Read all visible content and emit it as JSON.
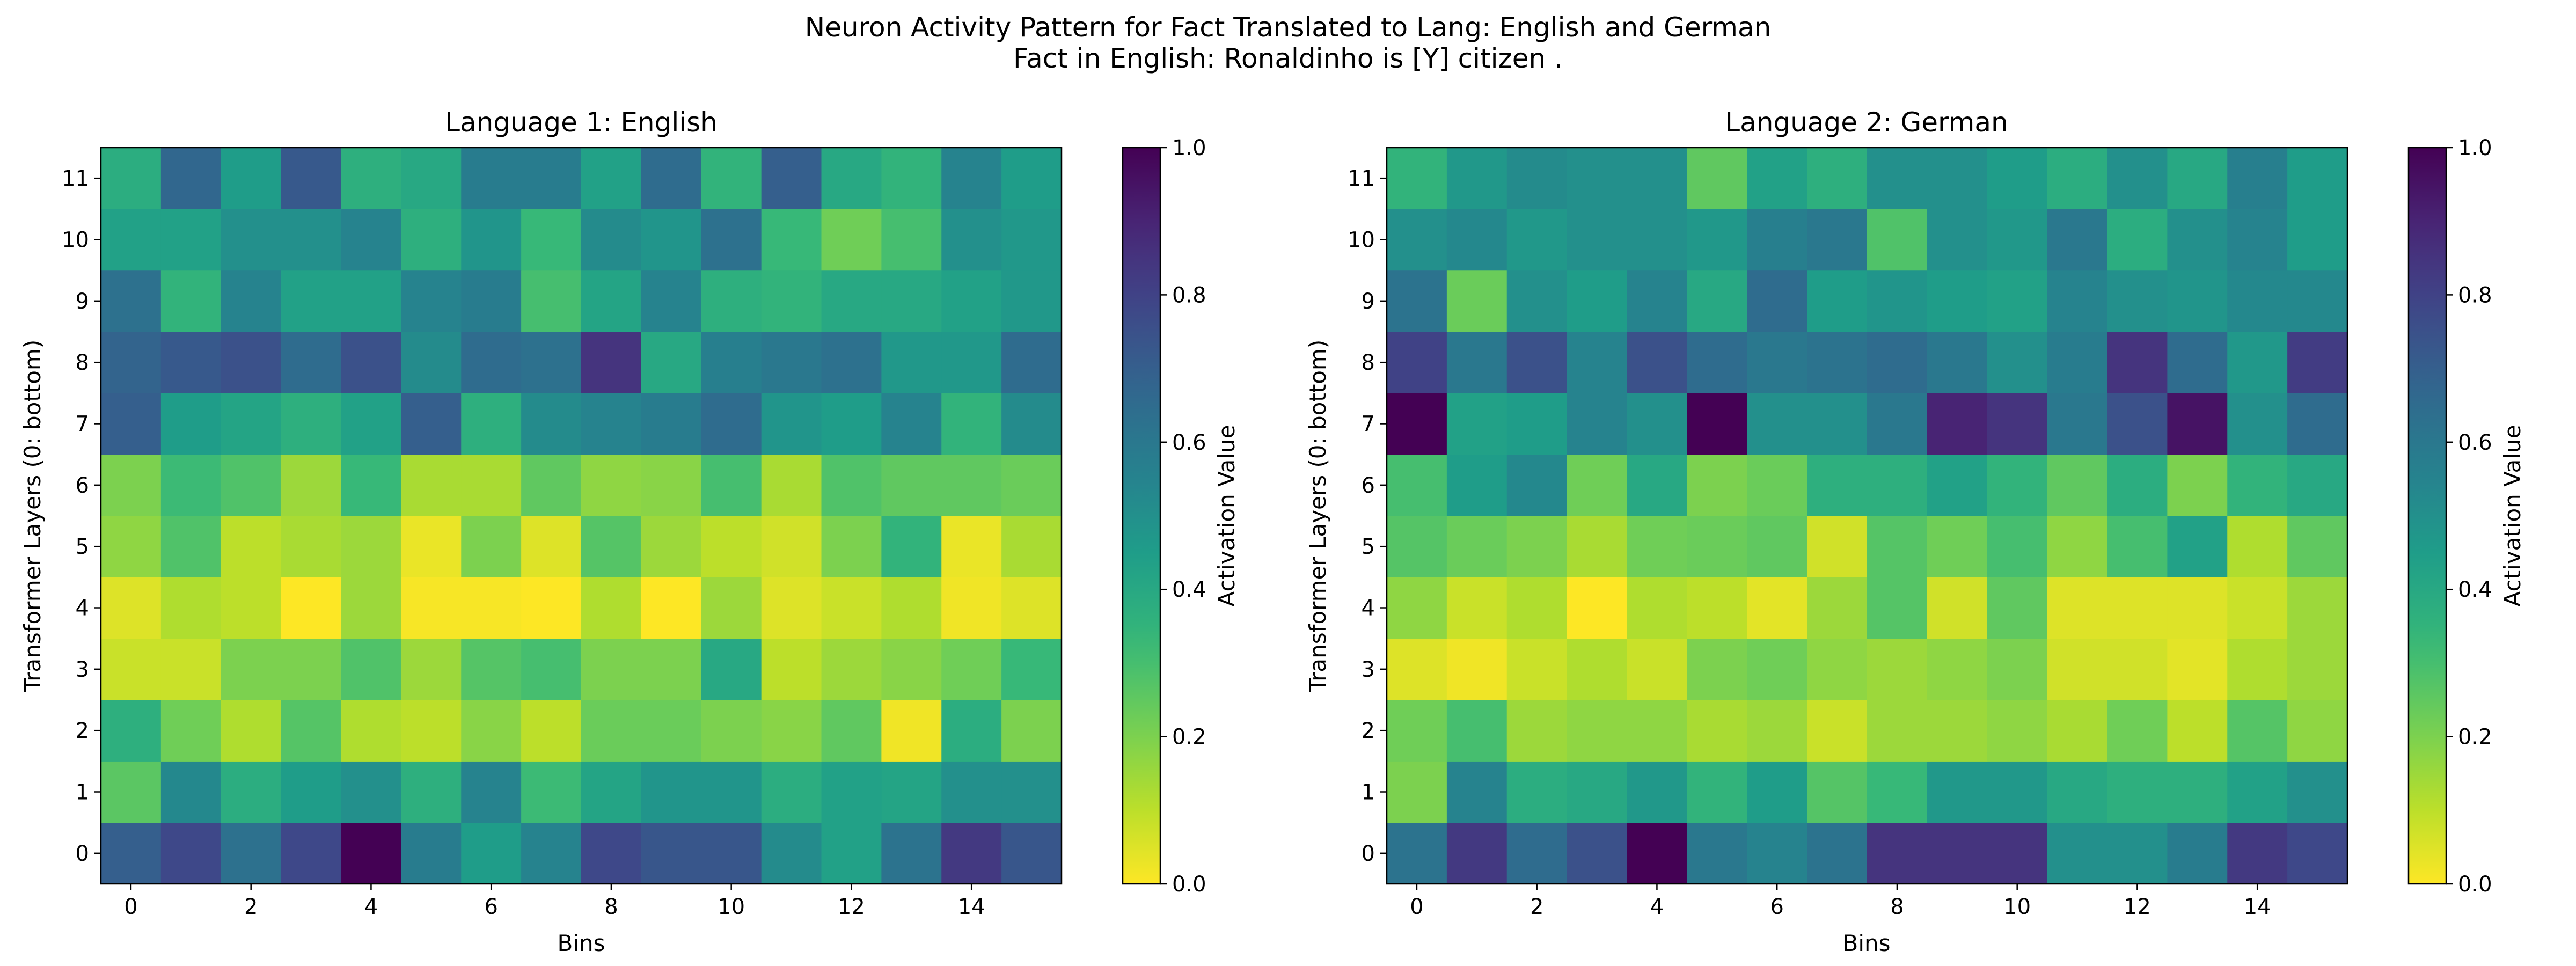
{
  "figure": {
    "title_line1": "Neuron Activity Pattern for Fact Translated to Lang: English and German",
    "title_line2": "Fact in English: Ronaldinho is [Y] citizen ."
  },
  "chart_data": [
    {
      "type": "heatmap",
      "title": "Language 1: English",
      "xlabel": "Bins",
      "ylabel": "Transformer Layers (0: bottom)",
      "x_ticks": [
        0,
        2,
        4,
        6,
        8,
        10,
        12,
        14
      ],
      "y_ticks": [
        0,
        1,
        2,
        3,
        4,
        5,
        6,
        7,
        8,
        9,
        10,
        11
      ],
      "x_range": [
        0,
        15
      ],
      "y_range": [
        0,
        11
      ],
      "colormap": "viridis_r",
      "colorbar": {
        "label": "Activation Value",
        "range": [
          0,
          1
        ],
        "ticks": [
          "0.0",
          "0.2",
          "0.4",
          "0.6",
          "0.8",
          "1.0"
        ]
      },
      "values": [
        [
          0.7,
          0.78,
          0.63,
          0.78,
          1.0,
          0.58,
          0.45,
          0.55,
          0.78,
          0.73,
          0.73,
          0.52,
          0.43,
          0.62,
          0.83,
          0.73
        ],
        [
          0.26,
          0.53,
          0.38,
          0.45,
          0.5,
          0.37,
          0.55,
          0.32,
          0.42,
          0.48,
          0.48,
          0.38,
          0.43,
          0.42,
          0.5,
          0.5
        ],
        [
          0.37,
          0.22,
          0.12,
          0.27,
          0.12,
          0.1,
          0.18,
          0.1,
          0.23,
          0.23,
          0.2,
          0.18,
          0.25,
          0.02,
          0.38,
          0.2
        ],
        [
          0.08,
          0.08,
          0.2,
          0.2,
          0.28,
          0.15,
          0.27,
          0.3,
          0.2,
          0.2,
          0.4,
          0.1,
          0.15,
          0.18,
          0.22,
          0.33
        ],
        [
          0.05,
          0.12,
          0.1,
          0.0,
          0.15,
          0.01,
          0.01,
          0.0,
          0.12,
          0.0,
          0.15,
          0.05,
          0.08,
          0.12,
          0.02,
          0.05
        ],
        [
          0.17,
          0.28,
          0.1,
          0.13,
          0.15,
          0.03,
          0.2,
          0.05,
          0.27,
          0.15,
          0.1,
          0.07,
          0.2,
          0.35,
          0.03,
          0.13
        ],
        [
          0.2,
          0.32,
          0.28,
          0.15,
          0.33,
          0.13,
          0.13,
          0.25,
          0.17,
          0.18,
          0.3,
          0.13,
          0.28,
          0.25,
          0.25,
          0.23
        ],
        [
          0.7,
          0.45,
          0.42,
          0.37,
          0.43,
          0.7,
          0.37,
          0.52,
          0.55,
          0.58,
          0.65,
          0.48,
          0.45,
          0.55,
          0.35,
          0.52
        ],
        [
          0.68,
          0.72,
          0.75,
          0.65,
          0.75,
          0.52,
          0.65,
          0.63,
          0.85,
          0.4,
          0.57,
          0.6,
          0.63,
          0.47,
          0.47,
          0.65
        ],
        [
          0.63,
          0.35,
          0.55,
          0.43,
          0.43,
          0.55,
          0.58,
          0.3,
          0.42,
          0.55,
          0.37,
          0.35,
          0.4,
          0.4,
          0.43,
          0.47
        ],
        [
          0.43,
          0.43,
          0.5,
          0.5,
          0.55,
          0.37,
          0.48,
          0.33,
          0.52,
          0.48,
          0.63,
          0.33,
          0.22,
          0.3,
          0.5,
          0.47
        ],
        [
          0.38,
          0.67,
          0.45,
          0.72,
          0.37,
          0.4,
          0.58,
          0.58,
          0.43,
          0.65,
          0.35,
          0.7,
          0.4,
          0.35,
          0.55,
          0.45
        ]
      ]
    },
    {
      "type": "heatmap",
      "title": "Language 2: German",
      "xlabel": "Bins",
      "ylabel": "Transformer Layers (0: bottom)",
      "x_ticks": [
        0,
        2,
        4,
        6,
        8,
        10,
        12,
        14
      ],
      "y_ticks": [
        0,
        1,
        2,
        3,
        4,
        5,
        6,
        7,
        8,
        9,
        10,
        11
      ],
      "x_range": [
        0,
        15
      ],
      "y_range": [
        0,
        11
      ],
      "colormap": "viridis_r",
      "colorbar": {
        "label": "Activation Value",
        "range": [
          0,
          1
        ],
        "ticks": [
          "0.0",
          "0.2",
          "0.4",
          "0.6",
          "0.8",
          "1.0"
        ]
      },
      "values": [
        [
          0.62,
          0.83,
          0.65,
          0.75,
          1.0,
          0.6,
          0.55,
          0.62,
          0.85,
          0.85,
          0.85,
          0.5,
          0.5,
          0.58,
          0.83,
          0.78
        ],
        [
          0.2,
          0.55,
          0.38,
          0.4,
          0.47,
          0.35,
          0.45,
          0.27,
          0.33,
          0.47,
          0.47,
          0.4,
          0.37,
          0.37,
          0.43,
          0.5
        ],
        [
          0.22,
          0.3,
          0.15,
          0.17,
          0.17,
          0.13,
          0.15,
          0.08,
          0.15,
          0.15,
          0.17,
          0.13,
          0.22,
          0.1,
          0.27,
          0.17
        ],
        [
          0.05,
          0.02,
          0.08,
          0.12,
          0.08,
          0.2,
          0.22,
          0.17,
          0.15,
          0.17,
          0.2,
          0.07,
          0.07,
          0.04,
          0.12,
          0.15
        ],
        [
          0.17,
          0.08,
          0.12,
          0.0,
          0.12,
          0.1,
          0.04,
          0.15,
          0.27,
          0.07,
          0.25,
          0.05,
          0.05,
          0.05,
          0.08,
          0.15
        ],
        [
          0.27,
          0.23,
          0.2,
          0.13,
          0.22,
          0.23,
          0.25,
          0.07,
          0.27,
          0.22,
          0.3,
          0.17,
          0.3,
          0.43,
          0.12,
          0.25
        ],
        [
          0.3,
          0.45,
          0.53,
          0.22,
          0.4,
          0.2,
          0.23,
          0.37,
          0.37,
          0.43,
          0.35,
          0.25,
          0.38,
          0.2,
          0.35,
          0.4
        ],
        [
          1.0,
          0.43,
          0.45,
          0.55,
          0.5,
          1.0,
          0.5,
          0.5,
          0.6,
          0.9,
          0.85,
          0.6,
          0.75,
          0.95,
          0.5,
          0.65
        ],
        [
          0.8,
          0.6,
          0.75,
          0.55,
          0.75,
          0.65,
          0.6,
          0.62,
          0.65,
          0.6,
          0.5,
          0.58,
          0.85,
          0.65,
          0.47,
          0.82
        ],
        [
          0.62,
          0.23,
          0.5,
          0.45,
          0.55,
          0.4,
          0.65,
          0.45,
          0.48,
          0.45,
          0.43,
          0.55,
          0.5,
          0.48,
          0.53,
          0.53
        ],
        [
          0.5,
          0.53,
          0.47,
          0.5,
          0.5,
          0.47,
          0.57,
          0.6,
          0.28,
          0.5,
          0.47,
          0.6,
          0.38,
          0.5,
          0.55,
          0.45
        ],
        [
          0.35,
          0.47,
          0.52,
          0.5,
          0.5,
          0.25,
          0.43,
          0.37,
          0.5,
          0.5,
          0.45,
          0.38,
          0.5,
          0.4,
          0.57,
          0.45
        ]
      ]
    }
  ]
}
